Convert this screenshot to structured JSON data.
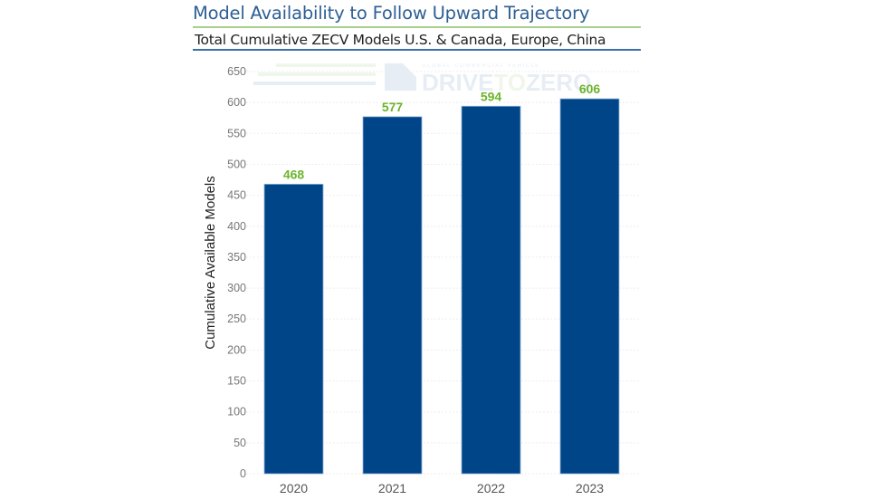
{
  "header": {
    "title": "Model Availability to Follow Upward Trajectory",
    "subtitle": "Total Cumulative ZECV Models U.S. & Canada, Europe, China"
  },
  "watermark": {
    "tagline": "GLOBAL COMMERCIAL VEHICLE",
    "brand_a": "DRIVE",
    "brand_b": "TO",
    "brand_c": "ZERO"
  },
  "colors": {
    "bar": "#004587",
    "data_label": "#6cb42c",
    "title": "#2d5f94"
  },
  "chart_data": {
    "type": "bar",
    "categories": [
      "2020",
      "2021",
      "2022",
      "2023"
    ],
    "values": [
      468,
      577,
      594,
      606
    ],
    "data_labels": [
      "468",
      "577",
      "594",
      "606"
    ],
    "title": "Total Cumulative ZECV Models U.S. & Canada, Europe, China",
    "xlabel": "",
    "ylabel": "Cumulative Available Models",
    "ylim": [
      0,
      650
    ],
    "yticks": [
      0,
      50,
      100,
      150,
      200,
      250,
      300,
      350,
      400,
      450,
      500,
      550,
      600,
      650
    ],
    "grid": true,
    "legend": "none"
  }
}
